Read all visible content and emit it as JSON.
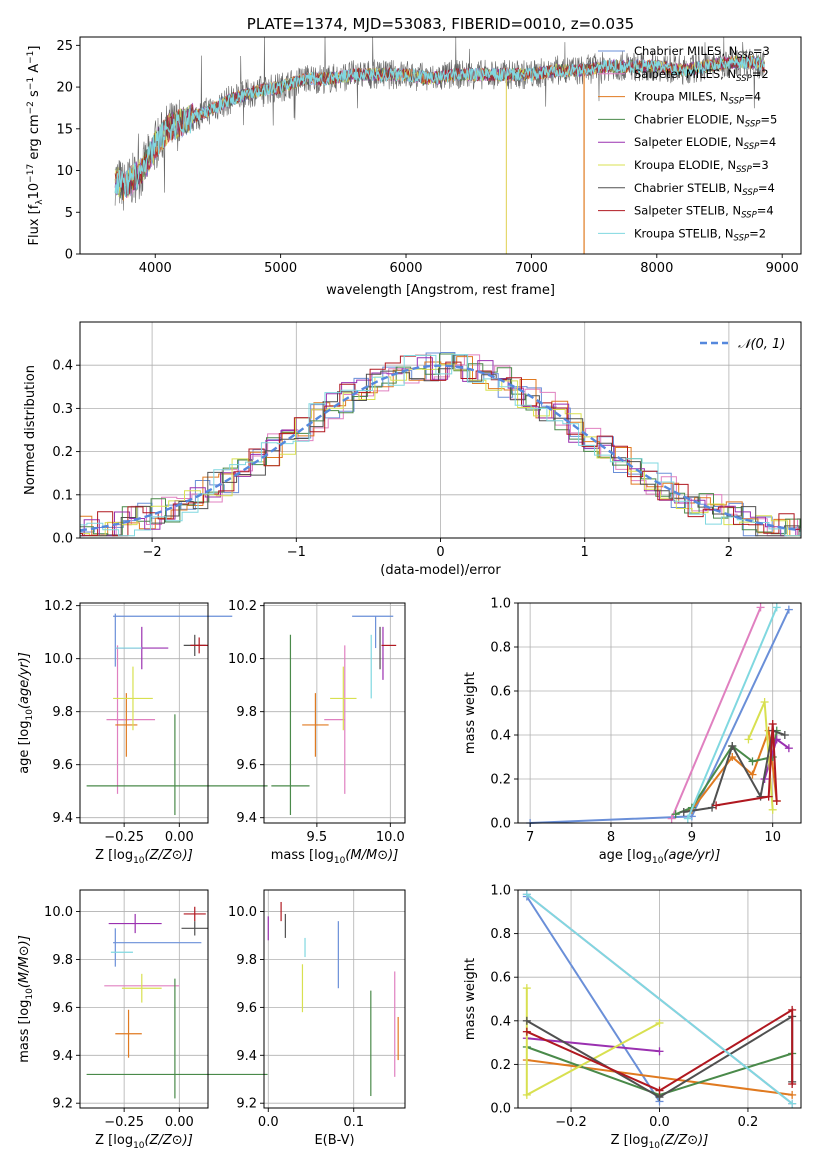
{
  "chart_data": [
    {
      "id": "spectrum",
      "type": "line",
      "title": "PLATE=1374, MJD=53083, FIBERID=0010, z=0.035",
      "xlabel": "wavelength [Angstrom, rest frame]",
      "ylabel": "Flux [f_λ10^-17 erg cm^-2 s^-1 A^-1]",
      "ylabel_parts": {
        "a": "Flux [f",
        "b": "λ",
        "c": "10",
        "d": "−17",
        "e": " erg cm",
        "f": "−2",
        "g": " s",
        "h": "−1",
        "i": " A",
        "j": "−1",
        "k": "]"
      },
      "xlim": [
        3400,
        9150
      ],
      "ylim": [
        0,
        26
      ],
      "xticks": [
        4000,
        5000,
        6000,
        7000,
        8000,
        9000
      ],
      "yticks": [
        0,
        5,
        10,
        15,
        20,
        25
      ],
      "legend_position": "right",
      "legend": [
        {
          "label": "Chabrier MILES, N",
          "n": "3",
          "color": "#6a8fd8"
        },
        {
          "label": "Salpeter MILES, N",
          "n": "2",
          "color": "#e080c0"
        },
        {
          "label": "Kroupa MILES, N",
          "n": "4",
          "color": "#e07a20"
        },
        {
          "label": "Chabrier ELODIE, N",
          "n": "5",
          "color": "#4a8a4a"
        },
        {
          "label": "Salpeter ELODIE, N",
          "n": "4",
          "color": "#9a30b0"
        },
        {
          "label": "Kroupa ELODIE, N",
          "n": "3",
          "color": "#d8e050"
        },
        {
          "label": "Chabrier STELIB, N",
          "n": "4",
          "color": "#505050"
        },
        {
          "label": "Salpeter STELIB, N",
          "n": "4",
          "color": "#b01820"
        },
        {
          "label": "Kroupa STELIB, N",
          "n": "2",
          "color": "#80d8e0"
        }
      ],
      "legend_sub": "SSP",
      "spectrum_continuum": {
        "x": [
          3680,
          3750,
          3900,
          4000,
          4100,
          4250,
          4400,
          4600,
          4800,
          5000,
          5200,
          5400,
          5600,
          5800,
          6000,
          6200,
          6400,
          6600,
          6800,
          7000,
          7200,
          7400,
          7600,
          7800,
          8000,
          8200,
          8400,
          8600,
          8800,
          8860
        ],
        "y": [
          9,
          8,
          10,
          13,
          15,
          16,
          17,
          18.5,
          19.5,
          20,
          21,
          21,
          21.5,
          21.5,
          21.5,
          21,
          21.5,
          21.5,
          21.5,
          21.5,
          22,
          22,
          22.5,
          22.5,
          22.5,
          22,
          22.5,
          23,
          23,
          22.5
        ]
      }
    },
    {
      "id": "residuals",
      "type": "histogram",
      "xlabel": "(data-model)/error",
      "ylabel": "Normed distribution",
      "xlim": [
        -2.5,
        2.5
      ],
      "ylim": [
        0,
        0.5
      ],
      "xticks": [
        -2,
        -1,
        0,
        1,
        2
      ],
      "xticklabels": [
        "−2",
        "−1",
        "0",
        "1",
        "2"
      ],
      "yticks": [
        0,
        0.1,
        0.2,
        0.3,
        0.4
      ],
      "yticklabels": [
        "0.0",
        "0.1",
        "0.2",
        "0.3",
        "0.4"
      ],
      "legend": [
        {
          "label": "𝒩(0, 1)",
          "color": "#5588dd"
        }
      ],
      "legend_position": "top-right",
      "grid": true
    },
    {
      "id": "age_vs_Z",
      "type": "errorbar",
      "xlabel": "Z [log10(Z/Z⊙)]",
      "ylabel": "age  [log10(age/yr)]",
      "xlim": [
        -0.45,
        0.13
      ],
      "ylim": [
        9.38,
        10.21
      ],
      "xticks": [
        -0.25,
        0.0
      ],
      "xticklabels": [
        "−0.25",
        "0.00"
      ],
      "yticks": [
        9.4,
        9.6,
        9.8,
        10.0,
        10.2
      ],
      "yticklabels": [
        "9.4",
        "9.6",
        "9.8",
        "10.0",
        "10.2"
      ],
      "grid": true,
      "points": [
        {
          "x": -0.03,
          "y": 10.16,
          "xe": 0.27,
          "ye": 0.0,
          "color": "#6a8fd8"
        },
        {
          "x": -0.29,
          "y": 10.07,
          "xe": 0.0,
          "ye": 0.1,
          "color": "#6a8fd8"
        },
        {
          "x": -0.28,
          "y": 9.77,
          "xe": 0.05,
          "ye": 0.28,
          "color": "#e080c0"
        },
        {
          "x": -0.2,
          "y": 9.77,
          "xe": 0.09,
          "ye": 0.0,
          "color": "#e080c0"
        },
        {
          "x": -0.24,
          "y": 9.75,
          "xe": 0.05,
          "ye": 0.12,
          "color": "#e07a20"
        },
        {
          "x": -0.01,
          "y": 9.52,
          "xe": 0.41,
          "ye": 0.0,
          "color": "#4a8a4a"
        },
        {
          "x": -0.02,
          "y": 9.6,
          "xe": 0.0,
          "ye": 0.19,
          "color": "#4a8a4a"
        },
        {
          "x": -0.17,
          "y": 10.04,
          "xe": 0.12,
          "ye": 0.08,
          "color": "#9a30b0"
        },
        {
          "x": -0.21,
          "y": 9.85,
          "xe": 0.09,
          "ye": 0.12,
          "color": "#d8e050"
        },
        {
          "x": 0.07,
          "y": 10.05,
          "xe": 0.05,
          "ye": 0.04,
          "color": "#505050"
        },
        {
          "x": 0.09,
          "y": 10.05,
          "xe": 0.04,
          "ye": 0.03,
          "color": "#b01820"
        },
        {
          "x": -0.23,
          "y": 10.04,
          "xe": 0.06,
          "ye": 0.0,
          "color": "#80d8e0"
        }
      ]
    },
    {
      "id": "age_vs_mass",
      "type": "errorbar",
      "xlabel": "mass [log10(M/M⊙)]",
      "ylabel": "",
      "xlim": [
        9.14,
        10.1
      ],
      "ylim": [
        9.38,
        10.21
      ],
      "xticks": [
        9.5,
        10.0
      ],
      "xticklabels": [
        "9.5",
        "10.0"
      ],
      "yticks": [
        9.4,
        9.6,
        9.8,
        10.0,
        10.2
      ],
      "yticklabels": [
        "9.4",
        "9.6",
        "9.8",
        "10.0",
        "10.2"
      ],
      "grid": true,
      "points": [
        {
          "x": 9.88,
          "y": 10.16,
          "xe": 0.14,
          "ye": 0.0,
          "color": "#6a8fd8"
        },
        {
          "x": 9.9,
          "y": 10.1,
          "xe": 0.0,
          "ye": 0.06,
          "color": "#6a8fd8"
        },
        {
          "x": 9.69,
          "y": 9.77,
          "xe": 0.0,
          "ye": 0.28,
          "color": "#e080c0"
        },
        {
          "x": 9.62,
          "y": 9.77,
          "xe": 0.07,
          "ye": 0.0,
          "color": "#e080c0"
        },
        {
          "x": 9.49,
          "y": 9.75,
          "xe": 0.09,
          "ye": 0.12,
          "color": "#e07a20"
        },
        {
          "x": 9.32,
          "y": 9.52,
          "xe": 0.13,
          "ye": 0.0,
          "color": "#4a8a4a"
        },
        {
          "x": 9.32,
          "y": 9.75,
          "xe": 0.0,
          "ye": 0.34,
          "color": "#4a8a4a"
        },
        {
          "x": 9.95,
          "y": 10.02,
          "xe": 0.0,
          "ye": 0.1,
          "color": "#9a30b0"
        },
        {
          "x": 9.68,
          "y": 9.85,
          "xe": 0.09,
          "ye": 0.12,
          "color": "#d8e050"
        },
        {
          "x": 9.93,
          "y": 10.04,
          "xe": 0.0,
          "ye": 0.08,
          "color": "#505050"
        },
        {
          "x": 9.99,
          "y": 10.05,
          "xe": 0.05,
          "ye": 0.0,
          "color": "#b01820"
        },
        {
          "x": 9.87,
          "y": 9.97,
          "xe": 0.0,
          "ye": 0.12,
          "color": "#80d8e0"
        }
      ]
    },
    {
      "id": "weight_vs_age",
      "type": "line",
      "xlabel": "age  [log10(age/yr)]",
      "ylabel": "mass weight",
      "xlim": [
        6.85,
        10.35
      ],
      "ylim": [
        0,
        1.0
      ],
      "xticks": [
        7,
        8,
        9,
        10
      ],
      "xticklabels": [
        "7",
        "8",
        "9",
        "10"
      ],
      "yticks": [
        0,
        0.2,
        0.4,
        0.6,
        0.8,
        1.0
      ],
      "yticklabels": [
        "0.0",
        "0.2",
        "0.4",
        "0.6",
        "0.8",
        "1.0"
      ],
      "grid": true,
      "series": [
        {
          "color": "#6a8fd8",
          "x": [
            7.0,
            9.0,
            10.2
          ],
          "y": [
            0.0,
            0.03,
            0.97
          ]
        },
        {
          "color": "#e080c0",
          "x": [
            8.75,
            9.85
          ],
          "y": [
            0.02,
            0.98
          ]
        },
        {
          "color": "#e07a20",
          "x": [
            9.0,
            9.5,
            9.75,
            9.95,
            10.05
          ],
          "y": [
            0.06,
            0.3,
            0.22,
            0.42,
            0.1
          ]
        },
        {
          "color": "#4a8a4a",
          "x": [
            8.8,
            9.0,
            9.5,
            9.75,
            10.0,
            10.05
          ],
          "y": [
            0.04,
            0.07,
            0.35,
            0.28,
            0.3,
            0.42
          ]
        },
        {
          "color": "#9a30b0",
          "x": [
            9.9,
            10.05,
            10.2
          ],
          "y": [
            0.2,
            0.38,
            0.34
          ]
        },
        {
          "color": "#d8e050",
          "x": [
            9.7,
            9.9,
            10.0
          ],
          "y": [
            0.38,
            0.55,
            0.06
          ]
        },
        {
          "color": "#505050",
          "x": [
            8.9,
            9.25,
            9.5,
            9.85,
            10.0,
            10.15
          ],
          "y": [
            0.05,
            0.07,
            0.35,
            0.12,
            0.42,
            0.4
          ]
        },
        {
          "color": "#b01820",
          "x": [
            9.3,
            9.95,
            10.0,
            10.05
          ],
          "y": [
            0.08,
            0.12,
            0.45,
            0.1
          ]
        },
        {
          "color": "#80d8e0",
          "x": [
            8.95,
            10.05
          ],
          "y": [
            0.02,
            0.98
          ]
        }
      ]
    },
    {
      "id": "mass_vs_Z",
      "type": "errorbar",
      "xlabel": "Z [log10(Z/Z⊙)]",
      "ylabel": "mass [log10(M/M⊙)]",
      "xlim": [
        -0.45,
        0.13
      ],
      "ylim": [
        9.18,
        10.09
      ],
      "xticks": [
        -0.25,
        0.0
      ],
      "xticklabels": [
        "−0.25",
        "0.00"
      ],
      "yticks": [
        9.2,
        9.4,
        9.6,
        9.8,
        10.0
      ],
      "yticklabels": [
        "9.2",
        "9.4",
        "9.6",
        "9.8",
        "10.0"
      ],
      "grid": true,
      "points": [
        {
          "x": -0.1,
          "y": 9.87,
          "xe": 0.2,
          "ye": 0.0,
          "color": "#6a8fd8"
        },
        {
          "x": -0.29,
          "y": 9.85,
          "xe": 0.0,
          "ye": 0.08,
          "color": "#6a8fd8"
        },
        {
          "x": -0.17,
          "y": 9.69,
          "xe": 0.17,
          "ye": 0.0,
          "color": "#e080c0"
        },
        {
          "x": -0.23,
          "y": 9.49,
          "xe": 0.06,
          "ye": 0.1,
          "color": "#e07a20"
        },
        {
          "x": -0.01,
          "y": 9.32,
          "xe": 0.41,
          "ye": 0.0,
          "color": "#4a8a4a"
        },
        {
          "x": -0.02,
          "y": 9.47,
          "xe": 0.0,
          "ye": 0.25,
          "color": "#4a8a4a"
        },
        {
          "x": -0.2,
          "y": 9.95,
          "xe": 0.12,
          "ye": 0.04,
          "color": "#9a30b0"
        },
        {
          "x": -0.17,
          "y": 9.68,
          "xe": 0.09,
          "ye": 0.06,
          "color": "#d8e050"
        },
        {
          "x": 0.07,
          "y": 9.93,
          "xe": 0.06,
          "ye": 0.03,
          "color": "#505050"
        },
        {
          "x": 0.07,
          "y": 9.99,
          "xe": 0.05,
          "ye": 0.03,
          "color": "#b01820"
        },
        {
          "x": -0.26,
          "y": 9.83,
          "xe": 0.05,
          "ye": 0.0,
          "color": "#80d8e0"
        }
      ]
    },
    {
      "id": "mass_vs_ebv",
      "type": "errorbar",
      "xlabel": "E(B-V)",
      "ylabel": "",
      "xlim": [
        -0.005,
        0.16
      ],
      "ylim": [
        9.18,
        10.09
      ],
      "xticks": [
        0.0,
        0.1
      ],
      "xticklabels": [
        "0.0",
        "0.1"
      ],
      "yticks": [
        9.2,
        9.4,
        9.6,
        9.8,
        10.0
      ],
      "yticklabels": [
        "9.2",
        "9.4",
        "9.6",
        "9.8",
        "10.0"
      ],
      "grid": true,
      "points": [
        {
          "x": 0.0,
          "y": 9.93,
          "xe": 0.0,
          "ye": 0.05,
          "color": "#9a30b0"
        },
        {
          "x": 0.015,
          "y": 10.0,
          "xe": 0.0,
          "ye": 0.04,
          "color": "#b01820"
        },
        {
          "x": 0.02,
          "y": 9.94,
          "xe": 0.0,
          "ye": 0.05,
          "color": "#505050"
        },
        {
          "x": 0.04,
          "y": 9.68,
          "xe": 0.0,
          "ye": 0.1,
          "color": "#d8e050"
        },
        {
          "x": 0.043,
          "y": 9.85,
          "xe": 0.0,
          "ye": 0.04,
          "color": "#80d8e0"
        },
        {
          "x": 0.082,
          "y": 9.82,
          "xe": 0.0,
          "ye": 0.14,
          "color": "#6a8fd8"
        },
        {
          "x": 0.12,
          "y": 9.45,
          "xe": 0.0,
          "ye": 0.22,
          "color": "#4a8a4a"
        },
        {
          "x": 0.148,
          "y": 9.53,
          "xe": 0.0,
          "ye": 0.22,
          "color": "#e080c0"
        },
        {
          "x": 0.152,
          "y": 9.47,
          "xe": 0.0,
          "ye": 0.09,
          "color": "#e07a20"
        }
      ]
    },
    {
      "id": "weight_vs_Z",
      "type": "line",
      "xlabel": "Z [log10(Z/Z⊙)]",
      "ylabel": "mass weight",
      "xlim": [
        -0.32,
        0.32
      ],
      "ylim": [
        0,
        1.0
      ],
      "xticks": [
        -0.2,
        0.0,
        0.2
      ],
      "xticklabels": [
        "−0.2",
        "0.0",
        "0.2"
      ],
      "yticks": [
        0,
        0.2,
        0.4,
        0.6,
        0.8,
        1.0
      ],
      "yticklabels": [
        "0.0",
        "0.2",
        "0.4",
        "0.6",
        "0.8",
        "1.0"
      ],
      "grid": true,
      "series": [
        {
          "color": "#6a8fd8",
          "x": [
            -0.3,
            0.0
          ],
          "y": [
            0.97,
            0.03
          ]
        },
        {
          "color": "#e080c0",
          "x": [
            -0.3,
            0.3
          ],
          "y": [
            0.98,
            0.02
          ]
        },
        {
          "color": "#e07a20",
          "x": [
            -0.3,
            0.3
          ],
          "y": [
            0.22,
            0.06
          ]
        },
        {
          "color": "#4a8a4a",
          "x": [
            -0.3,
            0.0,
            0.3
          ],
          "y": [
            0.28,
            0.06,
            0.25
          ]
        },
        {
          "color": "#9a30b0",
          "x": [
            -0.3,
            0.0
          ],
          "y": [
            0.32,
            0.26
          ]
        },
        {
          "color": "#d8e050",
          "x": [
            -0.3,
            -0.3,
            0.0
          ],
          "y": [
            0.55,
            0.06,
            0.39
          ]
        },
        {
          "color": "#505050",
          "x": [
            -0.3,
            0.0,
            0.3,
            0.3
          ],
          "y": [
            0.4,
            0.05,
            0.42,
            0.12
          ]
        },
        {
          "color": "#b01820",
          "x": [
            -0.3,
            0.0,
            0.3,
            0.3
          ],
          "y": [
            0.35,
            0.08,
            0.45,
            0.11
          ]
        },
        {
          "color": "#80d8e0",
          "x": [
            -0.3,
            0.3
          ],
          "y": [
            0.98,
            0.02
          ]
        }
      ]
    }
  ]
}
